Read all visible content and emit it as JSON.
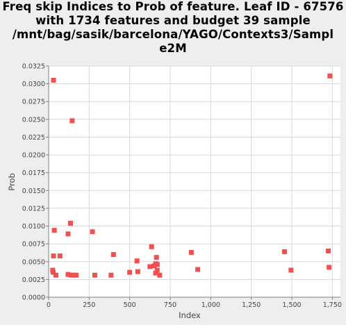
{
  "chart_data": {
    "type": "scatter",
    "title_lines": [
      "Freq skip Indices to Prob of feature. Leaf ID - 67576",
      "with 1734 features and budget 39 sample",
      "/mnt/bag/sasik/barcelona/YAGO/Contexts3/Sampl",
      "e2M"
    ],
    "xlabel": "Index",
    "ylabel": "Prob",
    "xlim": [
      0,
      1800
    ],
    "ylim": [
      0,
      0.0325
    ],
    "x_ticks": [
      "0",
      "250",
      "500",
      "750",
      "1,000",
      "1,250",
      "1,500",
      "1,750"
    ],
    "x_tick_values": [
      0,
      250,
      500,
      750,
      1000,
      1250,
      1500,
      1750
    ],
    "y_ticks": [
      "0.0000",
      "0.0025",
      "0.0050",
      "0.0075",
      "0.0100",
      "0.0125",
      "0.0150",
      "0.0175",
      "0.0200",
      "0.0225",
      "0.0250",
      "0.0275",
      "0.0300",
      "0.0325"
    ],
    "y_tick_values": [
      0,
      0.0025,
      0.005,
      0.0075,
      0.01,
      0.0125,
      0.015,
      0.0175,
      0.02,
      0.0225,
      0.025,
      0.0275,
      0.03,
      0.0325
    ],
    "marker_color": "#f05050",
    "grid": true,
    "points": [
      [
        30,
        0.0305
      ],
      [
        1735,
        0.0311
      ],
      [
        145,
        0.0248
      ],
      [
        135,
        0.0104
      ],
      [
        35,
        0.0094
      ],
      [
        120,
        0.0089
      ],
      [
        270,
        0.0092
      ],
      [
        30,
        0.0058
      ],
      [
        70,
        0.0058
      ],
      [
        400,
        0.006
      ],
      [
        635,
        0.0071
      ],
      [
        880,
        0.0063
      ],
      [
        1455,
        0.0064
      ],
      [
        1725,
        0.0065
      ],
      [
        665,
        0.0056
      ],
      [
        545,
        0.0051
      ],
      [
        660,
        0.0047
      ],
      [
        670,
        0.0046
      ],
      [
        625,
        0.0043
      ],
      [
        650,
        0.0044
      ],
      [
        920,
        0.0039
      ],
      [
        1495,
        0.0038
      ],
      [
        1730,
        0.0042
      ],
      [
        25,
        0.0038
      ],
      [
        28,
        0.0035
      ],
      [
        45,
        0.0031
      ],
      [
        120,
        0.0032
      ],
      [
        140,
        0.0031
      ],
      [
        155,
        0.0031
      ],
      [
        170,
        0.0031
      ],
      [
        285,
        0.0031
      ],
      [
        385,
        0.0031
      ],
      [
        500,
        0.0035
      ],
      [
        550,
        0.0036
      ],
      [
        660,
        0.0034
      ],
      [
        670,
        0.0038
      ],
      [
        685,
        0.0031
      ]
    ]
  }
}
